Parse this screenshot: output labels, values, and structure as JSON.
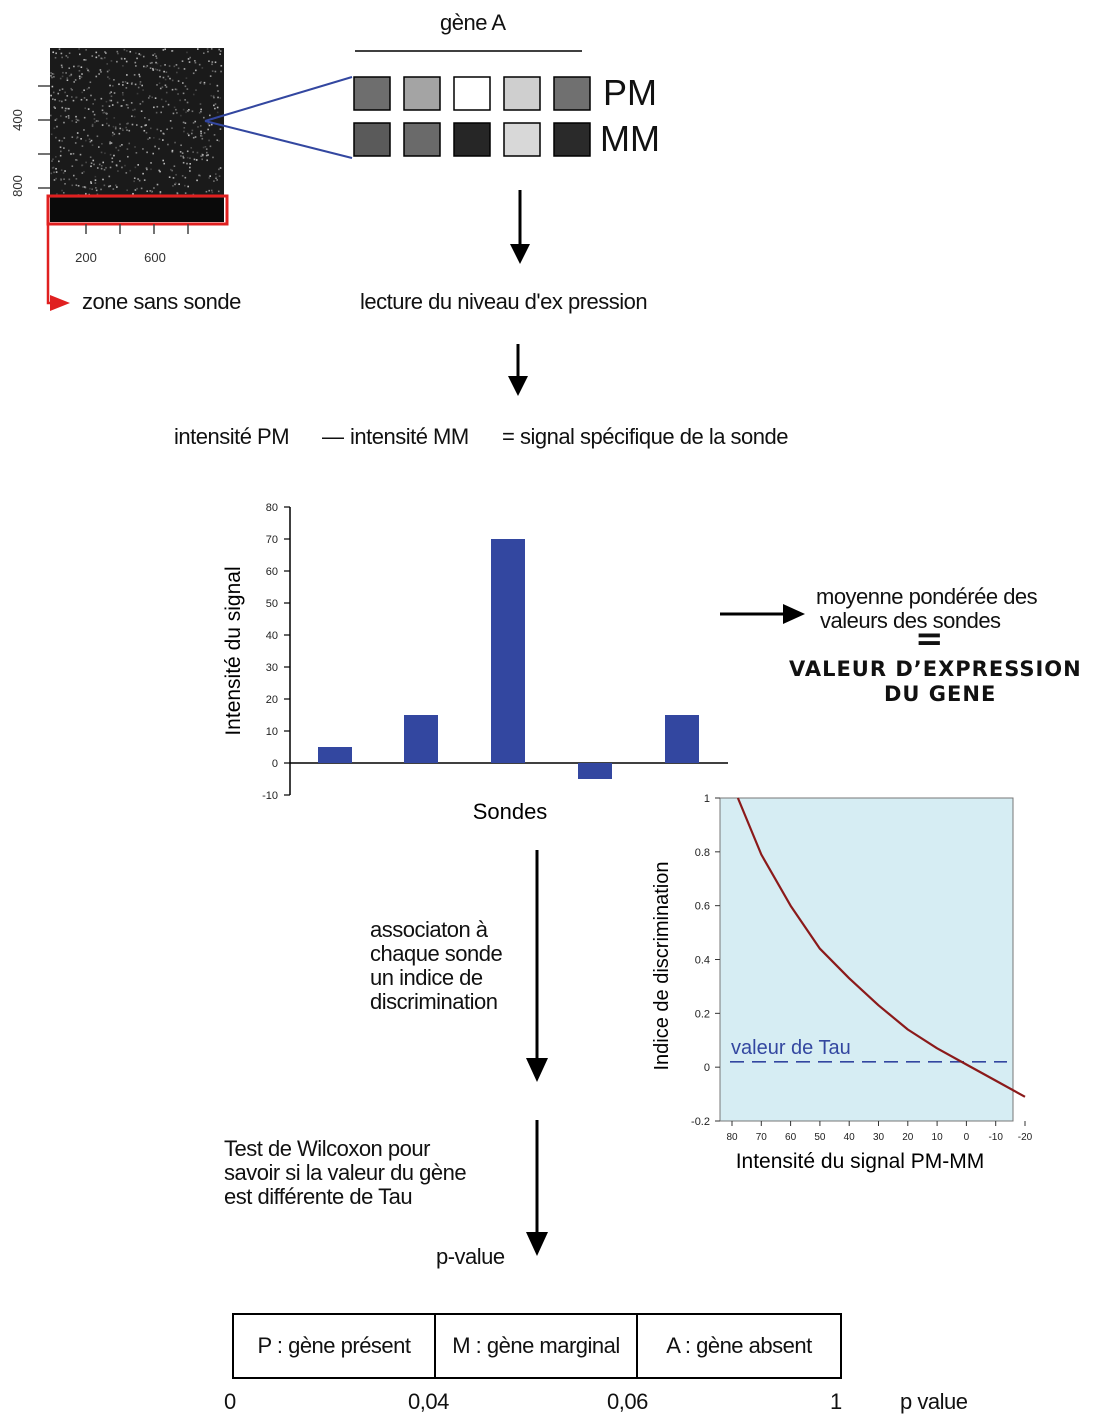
{
  "microarray": {
    "y_ticks": [
      "400",
      "800"
    ],
    "x_ticks": [
      "200",
      "600"
    ],
    "zone_label": "zone sans sonde"
  },
  "gene": {
    "title": "gène A",
    "pm_label": "PM",
    "mm_label": "MM",
    "pm_cells": [
      "#6e6e6e",
      "#a4a4a4",
      "#ffffff",
      "#cfcfcf",
      "#707070"
    ],
    "mm_cells": [
      "#5a5a5a",
      "#6a6a6a",
      "#262626",
      "#d8d8d8",
      "#2a2a2a"
    ]
  },
  "steps": {
    "reading": "lecture du niveau d'ex pression",
    "formula_pm": "intensité PM",
    "formula_dash": "—",
    "formula_mm": "intensité MM",
    "formula_result": "= signal spécifique de la sonde",
    "weighted_line1": "moyenne pondérée des",
    "weighted_line2": "valeurs des sondes",
    "equals": "=",
    "expression_line1": "VALEUR D’EXPRESSION",
    "expression_line2": "DU GENE",
    "association": [
      "associaton à",
      "chaque sonde",
      "un indice de",
      "discrimination"
    ],
    "wilcoxon": [
      "Test de Wilcoxon pour",
      "savoir si la valeur du gène",
      "est différente de Tau"
    ],
    "pvalue": "p-value"
  },
  "chart_data": [
    {
      "type": "bar",
      "ylabel": "Intensité du signal",
      "xlabel": "Sondes",
      "ylim": [
        -10,
        80
      ],
      "y_ticks": [
        "-10",
        "0",
        "10",
        "20",
        "30",
        "40",
        "50",
        "60",
        "70",
        "80"
      ],
      "values": [
        5,
        15,
        70,
        -5,
        15
      ],
      "color": "#3347a0"
    },
    {
      "type": "line",
      "ylabel": "Indice de discrimination",
      "xlabel": "Intensité du signal PM-MM",
      "x_ticks": [
        "80",
        "70",
        "60",
        "50",
        "40",
        "30",
        "20",
        "10",
        "0",
        "-10",
        "-20"
      ],
      "y_ticks": [
        "-0.2",
        "0",
        "0.2",
        "0.4",
        "0.6",
        "0.8",
        "1"
      ],
      "xlim": [
        80,
        -20
      ],
      "ylim": [
        -0.2,
        1
      ],
      "x": [
        78,
        70,
        60,
        50,
        40,
        30,
        20,
        10,
        0,
        -10,
        -20
      ],
      "y": [
        1.0,
        0.79,
        0.6,
        0.44,
        0.33,
        0.23,
        0.14,
        0.07,
        0.01,
        -0.05,
        -0.11
      ],
      "tau_label": "valeur de Tau",
      "tau_value": 0.02,
      "line_color": "#8b1a1a",
      "background": "#d6edf3"
    }
  ],
  "result_table": {
    "cells": [
      "P : gène présent",
      "M : gène marginal",
      "A : gène absent"
    ],
    "scale": [
      "0",
      "0,04",
      "0,06",
      "1"
    ],
    "axis_label": "p value"
  }
}
